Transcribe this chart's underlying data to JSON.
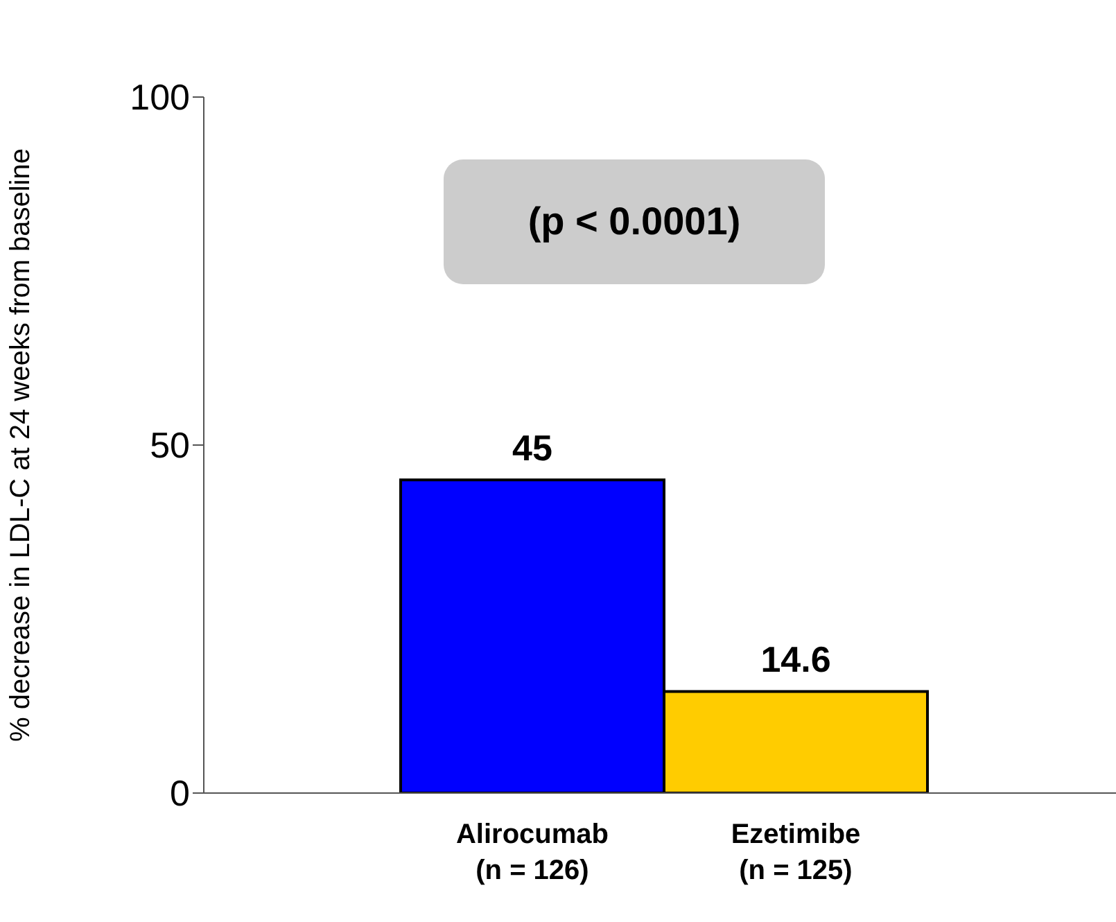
{
  "chart_data": {
    "type": "bar",
    "ylabel": "% decrease in LDL-C at 24 weeks from baseline",
    "categories": [
      "Alirocumab\n(n = 126)",
      "Ezetimibe\n(n = 125)"
    ],
    "values": [
      45,
      14.6
    ],
    "colors": [
      "#0000ff",
      "#ffcc00"
    ],
    "ylim": [
      0,
      100
    ],
    "yticks": [
      0,
      50,
      100
    ],
    "data_labels": true,
    "annotations": [
      "(p < 0.0001)"
    ]
  }
}
